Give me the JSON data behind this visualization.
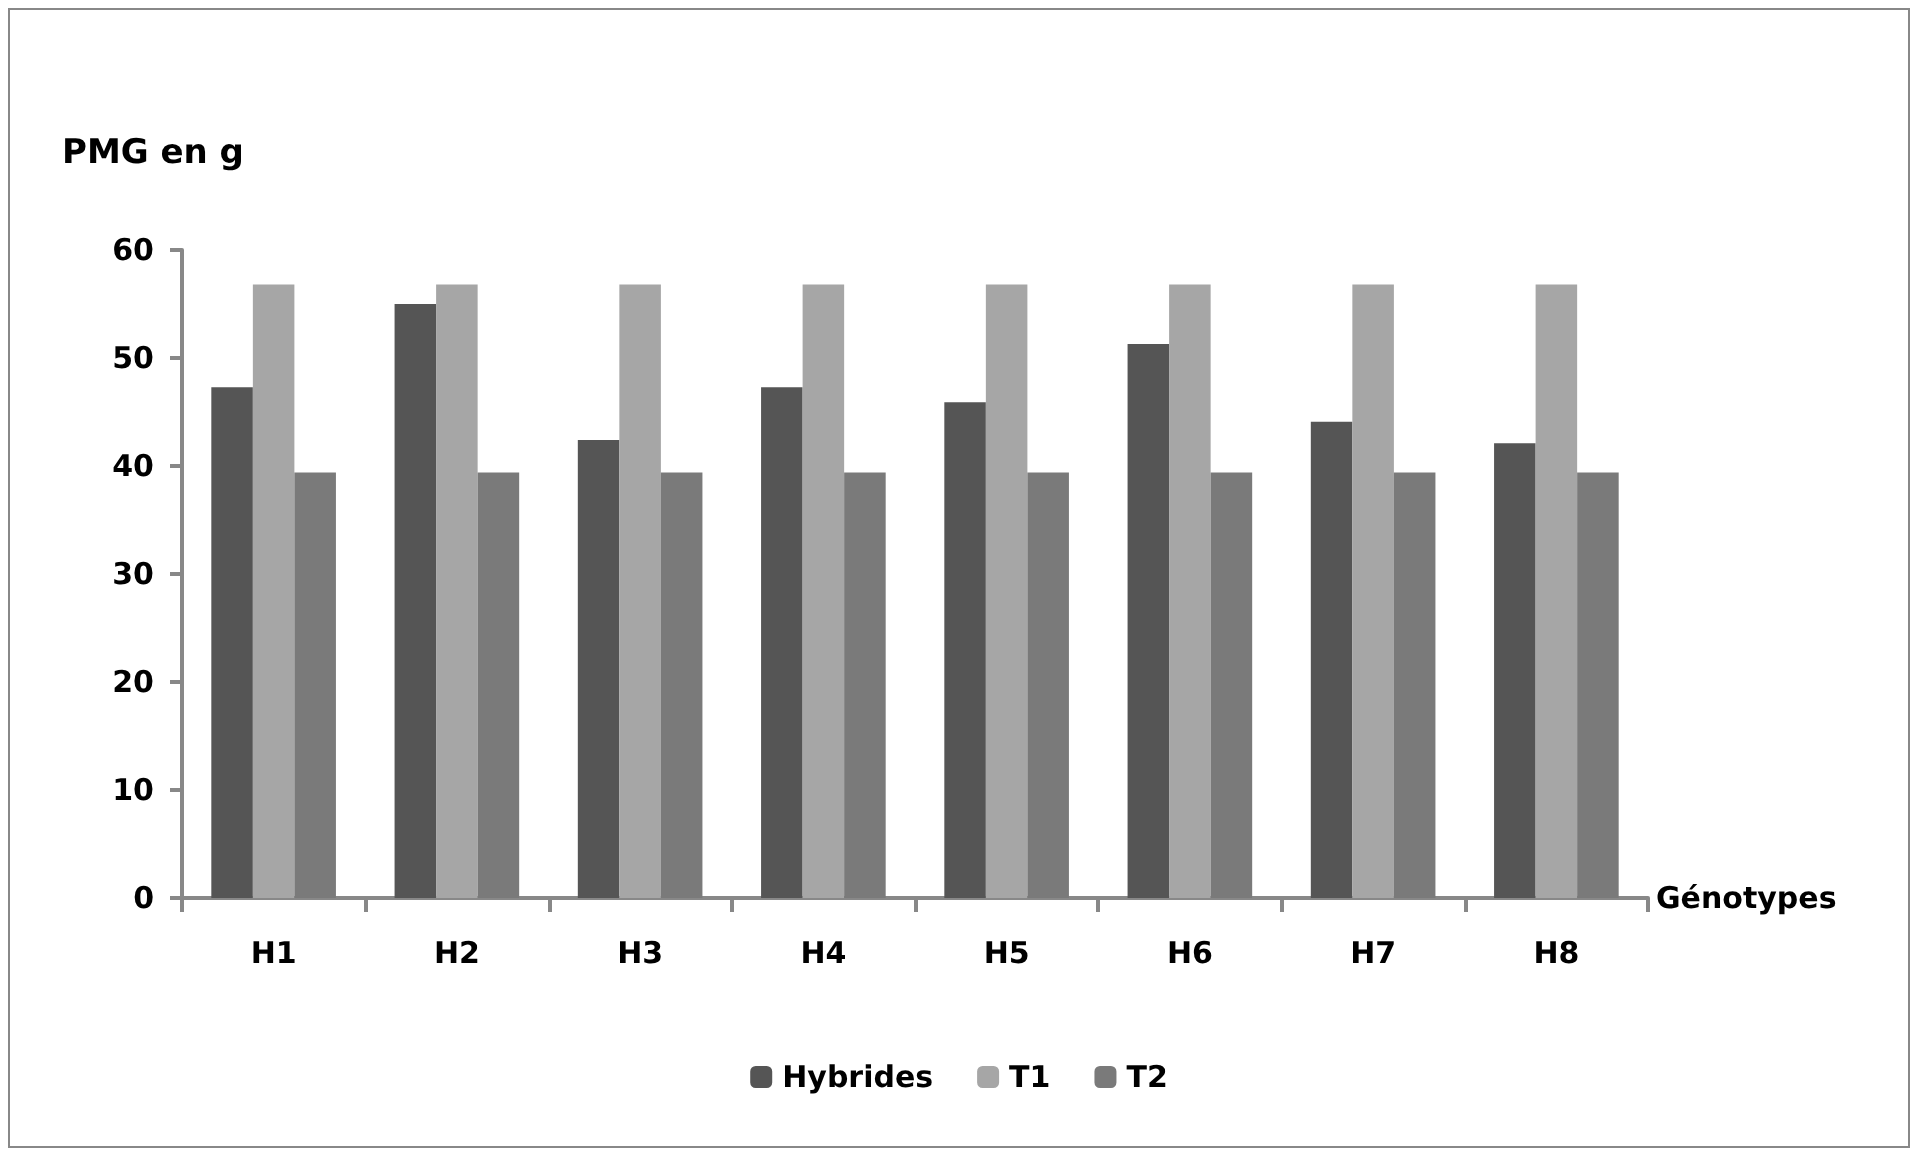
{
  "chart_data": {
    "type": "bar",
    "ylabel": "PMG en g",
    "xlabel": "Génotypes",
    "categories": [
      "H1",
      "H2",
      "H3",
      "H4",
      "H5",
      "H6",
      "H7",
      "H8"
    ],
    "series": [
      {
        "name": "Hybrides",
        "color": "#555555",
        "values": [
          47.3,
          55.0,
          42.4,
          47.3,
          45.9,
          51.3,
          44.1,
          42.1
        ]
      },
      {
        "name": "T1",
        "color": "#a6a6a6",
        "values": [
          56.8,
          56.8,
          56.8,
          56.8,
          56.8,
          56.8,
          56.8,
          56.8
        ]
      },
      {
        "name": "T2",
        "color": "#7a7a7a",
        "values": [
          39.4,
          39.4,
          39.4,
          39.4,
          39.4,
          39.4,
          39.4,
          39.4
        ]
      }
    ],
    "ylim": [
      0,
      60
    ],
    "yticks": [
      0,
      10,
      20,
      30,
      40,
      50,
      60
    ],
    "grid": false,
    "legend": "bottom"
  }
}
